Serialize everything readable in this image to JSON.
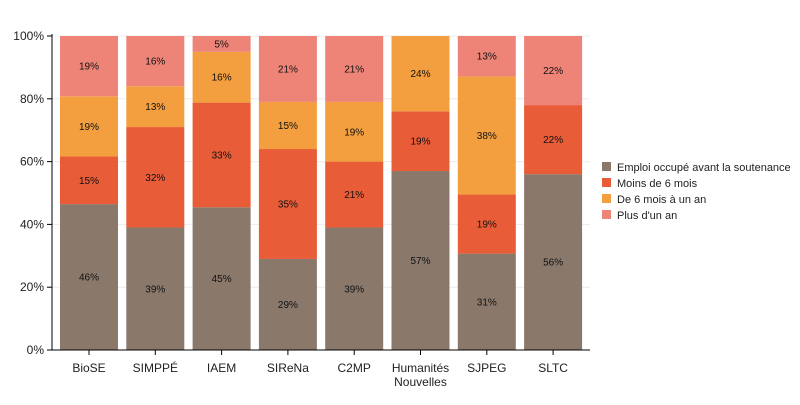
{
  "chart_data": {
    "type": "bar",
    "stacked": true,
    "normalized_percent": true,
    "title": "",
    "xlabel": "",
    "ylabel": "",
    "ylim": [
      0,
      100
    ],
    "yticks": [
      "0%",
      "20%",
      "40%",
      "60%",
      "80%",
      "100%"
    ],
    "grid": true,
    "legend_position": "right",
    "categories": [
      "BioSE",
      "SIMPPÉ",
      "IAEM",
      "SIReNa",
      "C2MP",
      "Humanités Nouvelles",
      "SJPEG",
      "SLTC"
    ],
    "series": [
      {
        "name": "Emploi occupé avant la soutenance",
        "color": "#8a786b",
        "values": [
          46,
          39,
          45,
          29,
          39,
          57,
          31,
          56
        ]
      },
      {
        "name": "Moins de 6 mois",
        "color": "#e85c38",
        "values": [
          15,
          32,
          33,
          35,
          21,
          19,
          19,
          22
        ]
      },
      {
        "name": "De 6 mois à un an",
        "color": "#f39f3f",
        "values": [
          19,
          13,
          16,
          15,
          19,
          24,
          38,
          0
        ]
      },
      {
        "name": "Plus d'un an",
        "color": "#ee8478",
        "values": [
          19,
          16,
          5,
          21,
          21,
          0,
          13,
          22
        ]
      }
    ]
  }
}
